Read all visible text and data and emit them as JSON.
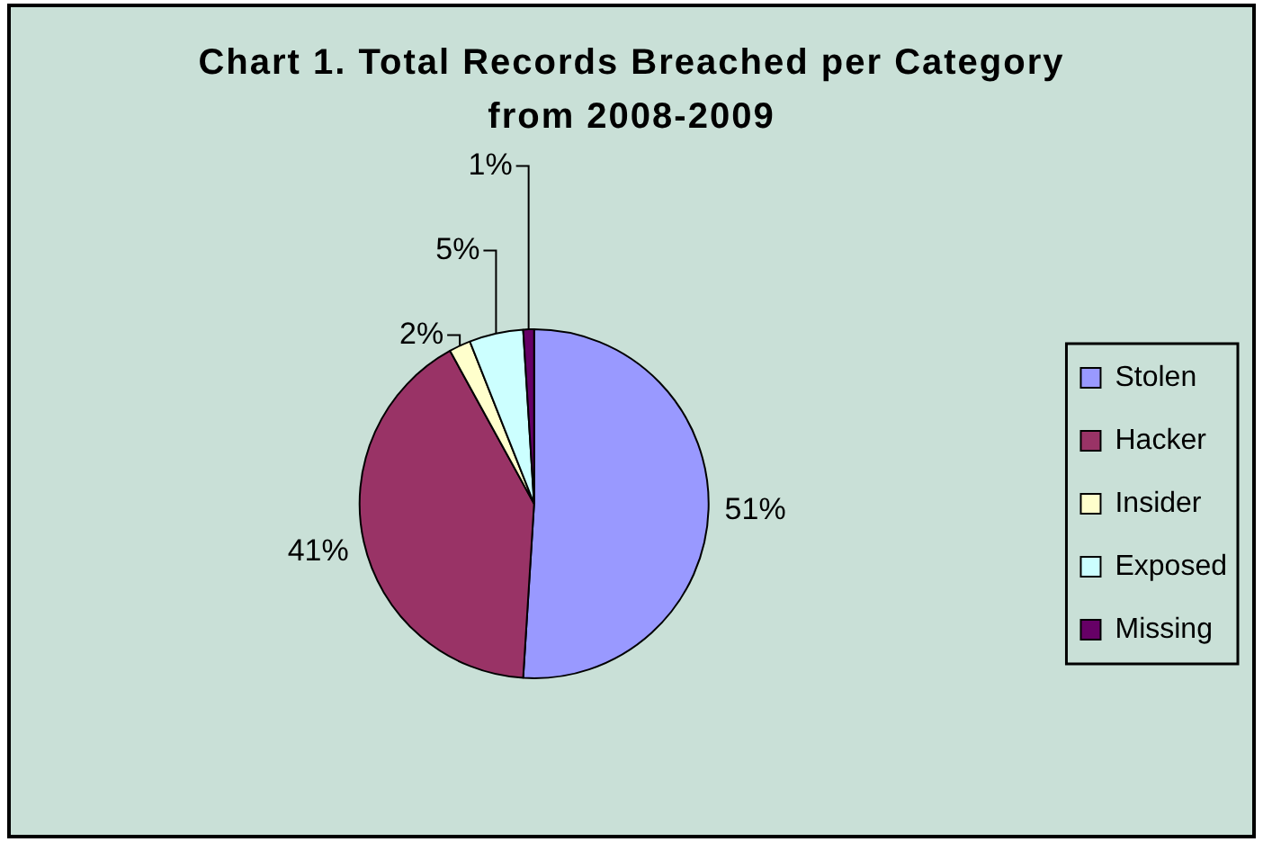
{
  "chart_data": {
    "type": "pie",
    "title": "Chart 1. Total Records Breached per Category from 2008-2009",
    "categories": [
      "Stolen",
      "Hacker",
      "Insider",
      "Exposed",
      "Missing"
    ],
    "values": [
      51,
      41,
      2,
      5,
      1
    ],
    "colors": [
      "#9999ff",
      "#993366",
      "#ffffcc",
      "#ccffff",
      "#660066"
    ],
    "value_labels": [
      "51%",
      "41%",
      "2%",
      "5%",
      "1%"
    ],
    "legend": "right"
  }
}
